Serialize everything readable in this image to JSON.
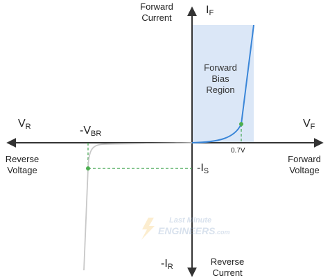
{
  "labels": {
    "forward_current": "Forward\nCurrent",
    "reverse_current": "Reverse\nCurrent",
    "forward_voltage": "Forward\nVoltage",
    "reverse_voltage": "Reverse\nVoltage",
    "forward_bias_region": "Forward\nBias\nRegion",
    "knee_voltage": "0.7V"
  },
  "axis_symbols": {
    "i_f": {
      "main": "I",
      "sub": "F"
    },
    "i_r": {
      "main": "-I",
      "sub": "R"
    },
    "v_f": {
      "main": "V",
      "sub": "F"
    },
    "v_r": {
      "main": "V",
      "sub": "R"
    },
    "v_br": {
      "main": "-V",
      "sub": "BR"
    },
    "i_s": {
      "main": "-I",
      "sub": "S"
    }
  },
  "watermark": {
    "line1": "Last Minute",
    "line2": "ENGINEERS",
    "line3": ".com"
  },
  "colors": {
    "axis": "#333333",
    "forward_curve": "#3a86d8",
    "reverse_curve": "#c8c8c8",
    "region_fill": "#dbe7f7",
    "guide": "#3fa34d",
    "point": "#4caf50"
  }
}
